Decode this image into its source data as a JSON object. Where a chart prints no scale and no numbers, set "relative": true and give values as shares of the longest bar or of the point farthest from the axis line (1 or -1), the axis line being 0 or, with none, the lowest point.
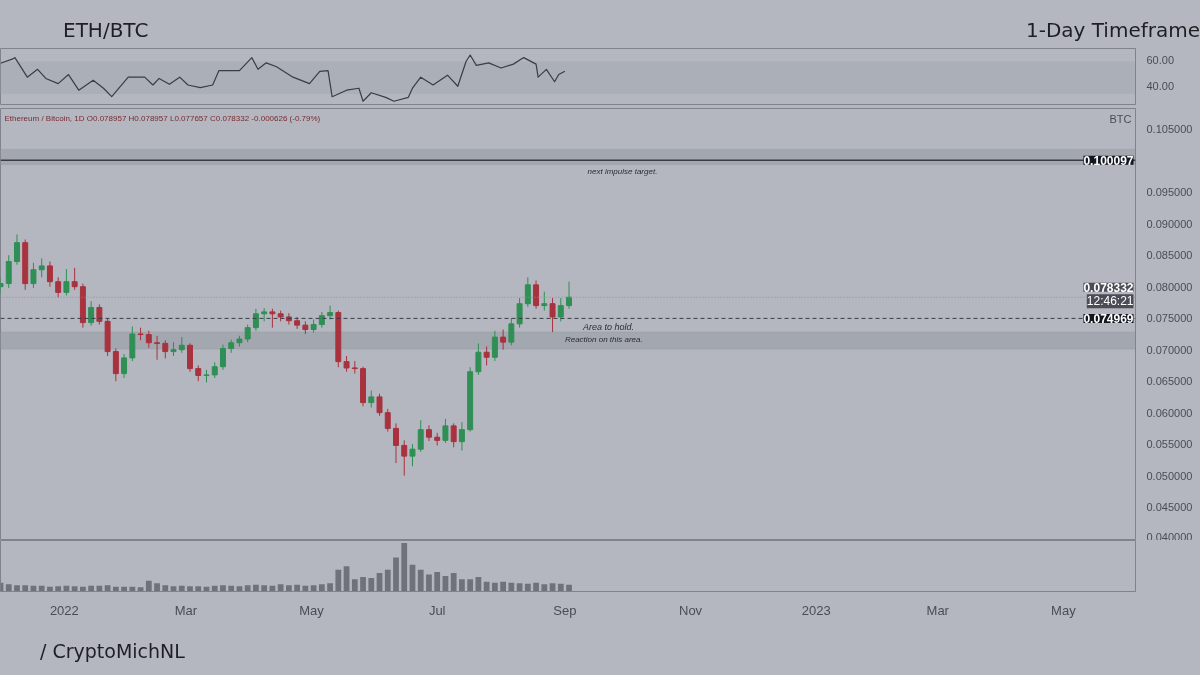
{
  "chart_data": [
    {
      "type": "line",
      "title": "ETH/BTC",
      "subtitle": "1-Day Timeframe",
      "xlim": [
        "2021-12-01",
        "2023-06-05"
      ],
      "ylim": [
        26,
        69
      ],
      "yticks": [
        {
          "value": 40,
          "label": "40.00"
        },
        {
          "value": 60,
          "label": "60.00"
        }
      ],
      "tick_labels": "y",
      "bands": [
        {
          "axis": "y",
          "from": 34,
          "to": 59,
          "color": "#a9acb5"
        }
      ],
      "x": [
        "2021-12-01",
        "2021-12-07",
        "2021-12-08",
        "2021-12-14",
        "2021-12-19",
        "2021-12-23",
        "2021-12-29",
        "2022-01-03",
        "2022-01-08",
        "2022-01-15",
        "2022-01-20",
        "2022-01-24",
        "2022-02-01",
        "2022-02-09",
        "2022-02-13",
        "2022-02-16",
        "2022-02-21",
        "2022-02-26",
        "2022-03-02",
        "2022-03-08",
        "2022-03-14",
        "2022-03-17",
        "2022-03-27",
        "2022-04-02",
        "2022-04-05",
        "2022-04-09",
        "2022-04-14",
        "2022-04-22",
        "2022-04-30",
        "2022-05-05",
        "2022-05-09",
        "2022-05-11",
        "2022-05-18",
        "2022-05-24",
        "2022-05-26",
        "2022-05-30",
        "2022-06-06",
        "2022-06-10",
        "2022-06-17",
        "2022-06-19",
        "2022-06-23",
        "2022-06-29",
        "2022-07-06",
        "2022-07-11",
        "2022-07-15",
        "2022-07-17",
        "2022-07-20",
        "2022-07-26",
        "2022-08-01",
        "2022-08-07",
        "2022-08-12",
        "2022-08-18",
        "2022-08-19",
        "2022-08-23",
        "2022-08-27",
        "2022-08-29",
        "2022-09-01"
      ],
      "series": [
        {
          "color": "#3b3d44",
          "values": [
            57.7,
            61,
            62,
            47,
            53,
            46,
            42,
            49,
            37,
            44.6,
            38.5,
            32,
            47,
            47,
            41,
            46,
            41.5,
            47,
            41,
            39,
            41,
            52,
            52,
            62,
            53,
            58,
            55,
            47,
            42,
            51.5,
            52,
            32,
            37,
            38.5,
            28.5,
            35,
            31.5,
            28.5,
            31.5,
            38.5,
            47,
            41,
            48.5,
            40,
            59,
            64,
            56,
            58,
            54,
            57,
            62,
            57,
            47,
            53,
            43.5,
            49,
            51.5
          ]
        }
      ]
    },
    {
      "type": "candlestick",
      "ylabel": "BTC",
      "xlim": [
        "2021-12-01",
        "2023-06-05"
      ],
      "ylim": [
        0.0397,
        0.1083
      ],
      "tick_labels": "y",
      "yticks": [
        {
          "value": 0.04,
          "label": "0.040000"
        },
        {
          "value": 0.045,
          "label": "0.045000"
        },
        {
          "value": 0.05,
          "label": "0.050000"
        },
        {
          "value": 0.055,
          "label": "0.055000"
        },
        {
          "value": 0.06,
          "label": "0.060000"
        },
        {
          "value": 0.065,
          "label": "0.065000"
        },
        {
          "value": 0.07,
          "label": "0.070000"
        },
        {
          "value": 0.075,
          "label": "0.075000"
        },
        {
          "value": 0.08,
          "label": "0.080000"
        },
        {
          "value": 0.085,
          "label": "0.085000"
        },
        {
          "value": 0.09,
          "label": "0.090000"
        },
        {
          "value": 0.095,
          "label": "0.095000"
        },
        {
          "value": 0.105,
          "label": "0.105000"
        }
      ],
      "colors": [
        "#2f8f55",
        "#2f8f55",
        "#2f8f55",
        "#a8323e",
        "#2f8f55",
        "#2f8f55",
        "#a8323e",
        "#a8323e",
        "#2f8f55",
        "#a8323e",
        "#a8323e",
        "#2f8f55",
        "#a8323e",
        "#a8323e",
        "#a8323e",
        "#2f8f55",
        "#2f8f55",
        "#a8323e",
        "#a8323e",
        "#a8323e",
        "#a8323e",
        "#2f8f55",
        "#2f8f55",
        "#a8323e",
        "#a8323e",
        "#2f8f55",
        "#2f8f55",
        "#2f8f55",
        "#2f8f55",
        "#2f8f55",
        "#2f8f55",
        "#2f8f55",
        "#2f8f55",
        "#a8323e",
        "#a8323e",
        "#a8323e",
        "#a8323e",
        "#a8323e",
        "#2f8f55",
        "#2f8f55",
        "#2f8f55",
        "#a8323e",
        "#a8323e",
        "#a8323e",
        "#a8323e",
        "#2f8f55",
        "#a8323e",
        "#a8323e",
        "#a8323e",
        "#a8323e",
        "#2f8f55",
        "#2f8f55",
        "#a8323e",
        "#a8323e",
        "#2f8f55",
        "#a8323e",
        "#2f8f55",
        "#2f8f55",
        "#2f8f55",
        "#a8323e",
        "#2f8f55",
        "#a8323e",
        "#2f8f55",
        "#2f8f55",
        "#2f8f55",
        "#a8323e",
        "#2f8f55",
        "#a8323e",
        "#2f8f55",
        "#2f8f55"
      ],
      "ref_lines": [
        {
          "axis": "y",
          "value": 0.100097,
          "label": "0.100097",
          "color": "#3a3c44",
          "line_style": "solid"
        },
        {
          "axis": "y",
          "value": 0.078332,
          "label": "0.078332",
          "color": "#8c8f98",
          "line_style": "dotted"
        },
        {
          "axis": "y",
          "value": 0.074969,
          "label": "0.074969",
          "color": "#3a3c44",
          "line_style": "dashed"
        }
      ],
      "bands": [
        {
          "axis": "y",
          "from": 0.0994,
          "to": 0.1018,
          "label": "next impulse target.",
          "color": "#9fa2ab"
        },
        {
          "axis": "y",
          "from": 0.0701,
          "to": 0.0728,
          "label": "Reaction on this area.",
          "color": "#9fa2ab"
        }
      ],
      "annotations": [
        "Ethereum / Bitcoin, 1D O0.078957 H0.078957 L0.077657 C0.078332 -0.000626 (-0.79%)",
        "/ CryptoMichNL",
        "12:46:21",
        "Area to hold."
      ],
      "x": [
        "2021-12-01",
        "2021-12-05",
        "2021-12-09",
        "2021-12-13",
        "2021-12-17",
        "2021-12-21",
        "2021-12-25",
        "2021-12-29",
        "2022-01-02",
        "2022-01-06",
        "2022-01-10",
        "2022-01-14",
        "2022-01-18",
        "2022-01-22",
        "2022-01-26",
        "2022-01-30",
        "2022-02-03",
        "2022-02-07",
        "2022-02-11",
        "2022-02-15",
        "2022-02-19",
        "2022-02-23",
        "2022-02-27",
        "2022-03-03",
        "2022-03-07",
        "2022-03-11",
        "2022-03-15",
        "2022-03-19",
        "2022-03-23",
        "2022-03-27",
        "2022-03-31",
        "2022-04-04",
        "2022-04-08",
        "2022-04-12",
        "2022-04-16",
        "2022-04-20",
        "2022-04-24",
        "2022-04-28",
        "2022-05-02",
        "2022-05-06",
        "2022-05-10",
        "2022-05-14",
        "2022-05-18",
        "2022-05-22",
        "2022-05-26",
        "2022-05-30",
        "2022-06-03",
        "2022-06-07",
        "2022-06-11",
        "2022-06-15",
        "2022-06-19",
        "2022-06-23",
        "2022-06-27",
        "2022-07-01",
        "2022-07-05",
        "2022-07-09",
        "2022-07-13",
        "2022-07-17",
        "2022-07-21",
        "2022-07-25",
        "2022-07-29",
        "2022-08-02",
        "2022-08-06",
        "2022-08-10",
        "2022-08-14",
        "2022-08-18",
        "2022-08-22",
        "2022-08-26",
        "2022-08-30",
        "2022-09-03"
      ],
      "ohlc": [
        [
          0.08,
          0.0815,
          0.079,
          0.0805
        ],
        [
          0.0805,
          0.085,
          0.0798,
          0.084
        ],
        [
          0.084,
          0.0883,
          0.0835,
          0.087
        ],
        [
          0.087,
          0.0875,
          0.0795,
          0.0805
        ],
        [
          0.0805,
          0.0838,
          0.0798,
          0.0827
        ],
        [
          0.0827,
          0.0845,
          0.0815,
          0.0833
        ],
        [
          0.0833,
          0.084,
          0.08,
          0.0808
        ],
        [
          0.0808,
          0.0815,
          0.0783,
          0.0791
        ],
        [
          0.0791,
          0.0828,
          0.0786,
          0.0808
        ],
        [
          0.0808,
          0.083,
          0.0795,
          0.08
        ],
        [
          0.08,
          0.0805,
          0.0735,
          0.0743
        ],
        [
          0.0743,
          0.0777,
          0.0738,
          0.0767
        ],
        [
          0.0767,
          0.0772,
          0.074,
          0.0745
        ],
        [
          0.0745,
          0.075,
          0.069,
          0.0697
        ],
        [
          0.0697,
          0.0702,
          0.065,
          0.0662
        ],
        [
          0.0662,
          0.0693,
          0.0655,
          0.0687
        ],
        [
          0.0687,
          0.0737,
          0.0682,
          0.0725
        ],
        [
          0.0725,
          0.0735,
          0.0715,
          0.0724
        ],
        [
          0.0724,
          0.073,
          0.0703,
          0.0711
        ],
        [
          0.0711,
          0.0722,
          0.0684,
          0.071
        ],
        [
          0.071,
          0.0715,
          0.0686,
          0.0697
        ],
        [
          0.0697,
          0.0712,
          0.069,
          0.07
        ],
        [
          0.07,
          0.072,
          0.0695,
          0.0707
        ],
        [
          0.0707,
          0.071,
          0.0665,
          0.067
        ],
        [
          0.067,
          0.0675,
          0.065,
          0.0659
        ],
        [
          0.0659,
          0.0668,
          0.0648,
          0.066
        ],
        [
          0.066,
          0.068,
          0.0655,
          0.0673
        ],
        [
          0.0673,
          0.0708,
          0.0668,
          0.0702
        ],
        [
          0.0702,
          0.0716,
          0.0695,
          0.0711
        ],
        [
          0.0711,
          0.0722,
          0.0705,
          0.0717
        ],
        [
          0.0717,
          0.074,
          0.0712,
          0.0735
        ],
        [
          0.0735,
          0.0765,
          0.073,
          0.0757
        ],
        [
          0.0757,
          0.0766,
          0.0745,
          0.076
        ],
        [
          0.076,
          0.0765,
          0.0735,
          0.0757
        ],
        [
          0.0757,
          0.0762,
          0.0745,
          0.0752
        ],
        [
          0.0752,
          0.0758,
          0.074,
          0.0746
        ],
        [
          0.0746,
          0.0752,
          0.0733,
          0.0739
        ],
        [
          0.0739,
          0.0745,
          0.0725,
          0.0732
        ],
        [
          0.0732,
          0.0748,
          0.0727,
          0.074
        ],
        [
          0.074,
          0.076,
          0.0735,
          0.0754
        ],
        [
          0.0754,
          0.077,
          0.0748,
          0.0759
        ],
        [
          0.0759,
          0.0762,
          0.0672,
          0.0681
        ],
        [
          0.0681,
          0.069,
          0.0665,
          0.0671
        ],
        [
          0.0671,
          0.0682,
          0.0662,
          0.067
        ],
        [
          0.067,
          0.0673,
          0.061,
          0.0616
        ],
        [
          0.0616,
          0.0635,
          0.0608,
          0.0625
        ],
        [
          0.0625,
          0.063,
          0.0595,
          0.06
        ],
        [
          0.06,
          0.0606,
          0.057,
          0.0575
        ],
        [
          0.0575,
          0.0583,
          0.052,
          0.0548
        ],
        [
          0.0548,
          0.0556,
          0.05,
          0.0531
        ],
        [
          0.0531,
          0.055,
          0.0515,
          0.0542
        ],
        [
          0.0542,
          0.0588,
          0.0538,
          0.0573
        ],
        [
          0.0573,
          0.058,
          0.0555,
          0.0561
        ],
        [
          0.0561,
          0.0568,
          0.0548,
          0.0556
        ],
        [
          0.0556,
          0.059,
          0.0552,
          0.0579
        ],
        [
          0.0579,
          0.0583,
          0.0545,
          0.0554
        ],
        [
          0.0554,
          0.0585,
          0.054,
          0.0573
        ],
        [
          0.0573,
          0.0672,
          0.057,
          0.0665
        ],
        [
          0.0665,
          0.071,
          0.066,
          0.0696
        ],
        [
          0.0696,
          0.0705,
          0.0675,
          0.0688
        ],
        [
          0.0688,
          0.073,
          0.0682,
          0.072
        ],
        [
          0.072,
          0.0732,
          0.07,
          0.0712
        ],
        [
          0.0712,
          0.075,
          0.0707,
          0.0741
        ],
        [
          0.0741,
          0.0782,
          0.0735,
          0.0773
        ],
        [
          0.0773,
          0.0815,
          0.0768,
          0.0803
        ],
        [
          0.0803,
          0.081,
          0.0765,
          0.077
        ],
        [
          0.077,
          0.0792,
          0.0762,
          0.0773
        ],
        [
          0.0773,
          0.0782,
          0.0728,
          0.0752
        ],
        [
          0.0752,
          0.0782,
          0.0745,
          0.077
        ],
        [
          0.077,
          0.0808,
          0.0765,
          0.078332
        ]
      ]
    },
    {
      "type": "bar",
      "relative": true,
      "tick_labels": "x",
      "xlim": [
        "2021-12-01",
        "2023-06-05"
      ],
      "xticks": [
        {
          "value": "2022-01-01",
          "label": "2022"
        },
        {
          "value": "2022-03-01",
          "label": "Mar"
        },
        {
          "value": "2022-05-01",
          "label": "May"
        },
        {
          "value": "2022-07-01",
          "label": "Jul"
        },
        {
          "value": "2022-09-01",
          "label": "Sep"
        },
        {
          "value": "2022-11-01",
          "label": "Nov"
        },
        {
          "value": "2023-01-01",
          "label": "2023"
        },
        {
          "value": "2023-03-01",
          "label": "Mar"
        },
        {
          "value": "2023-05-01",
          "label": "May"
        }
      ],
      "x": [
        "2021-12-01",
        "2021-12-05",
        "2021-12-09",
        "2021-12-13",
        "2021-12-17",
        "2021-12-21",
        "2021-12-25",
        "2021-12-29",
        "2022-01-02",
        "2022-01-06",
        "2022-01-10",
        "2022-01-14",
        "2022-01-18",
        "2022-01-22",
        "2022-01-26",
        "2022-01-30",
        "2022-02-03",
        "2022-02-07",
        "2022-02-11",
        "2022-02-15",
        "2022-02-19",
        "2022-02-23",
        "2022-02-27",
        "2022-03-03",
        "2022-03-07",
        "2022-03-11",
        "2022-03-15",
        "2022-03-19",
        "2022-03-23",
        "2022-03-27",
        "2022-03-31",
        "2022-04-04",
        "2022-04-08",
        "2022-04-12",
        "2022-04-16",
        "2022-04-20",
        "2022-04-24",
        "2022-04-28",
        "2022-05-02",
        "2022-05-06",
        "2022-05-10",
        "2022-05-14",
        "2022-05-18",
        "2022-05-22",
        "2022-05-26",
        "2022-05-30",
        "2022-06-03",
        "2022-06-07",
        "2022-06-11",
        "2022-06-15",
        "2022-06-19",
        "2022-06-23",
        "2022-06-27",
        "2022-07-01",
        "2022-07-05",
        "2022-07-09",
        "2022-07-13",
        "2022-07-17",
        "2022-07-21",
        "2022-07-25",
        "2022-07-29",
        "2022-08-02",
        "2022-08-06",
        "2022-08-10",
        "2022-08-14",
        "2022-08-18",
        "2022-08-22",
        "2022-08-26",
        "2022-08-30",
        "2022-09-03"
      ],
      "series": [
        {
          "color": "#6f727b",
          "values": [
            0.18,
            0.15,
            0.13,
            0.13,
            0.12,
            0.12,
            0.1,
            0.11,
            0.12,
            0.11,
            0.1,
            0.12,
            0.12,
            0.13,
            0.1,
            0.1,
            0.1,
            0.09,
            0.22,
            0.17,
            0.13,
            0.11,
            0.12,
            0.11,
            0.11,
            0.1,
            0.12,
            0.13,
            0.12,
            0.11,
            0.13,
            0.14,
            0.13,
            0.12,
            0.15,
            0.13,
            0.14,
            0.12,
            0.13,
            0.15,
            0.17,
            0.45,
            0.52,
            0.25,
            0.3,
            0.28,
            0.38,
            0.45,
            0.7,
            1.0,
            0.55,
            0.45,
            0.35,
            0.4,
            0.32,
            0.38,
            0.25,
            0.25,
            0.3,
            0.2,
            0.18,
            0.2,
            0.18,
            0.17,
            0.16,
            0.18,
            0.15,
            0.17,
            0.16,
            0.14
          ]
        }
      ]
    }
  ]
}
